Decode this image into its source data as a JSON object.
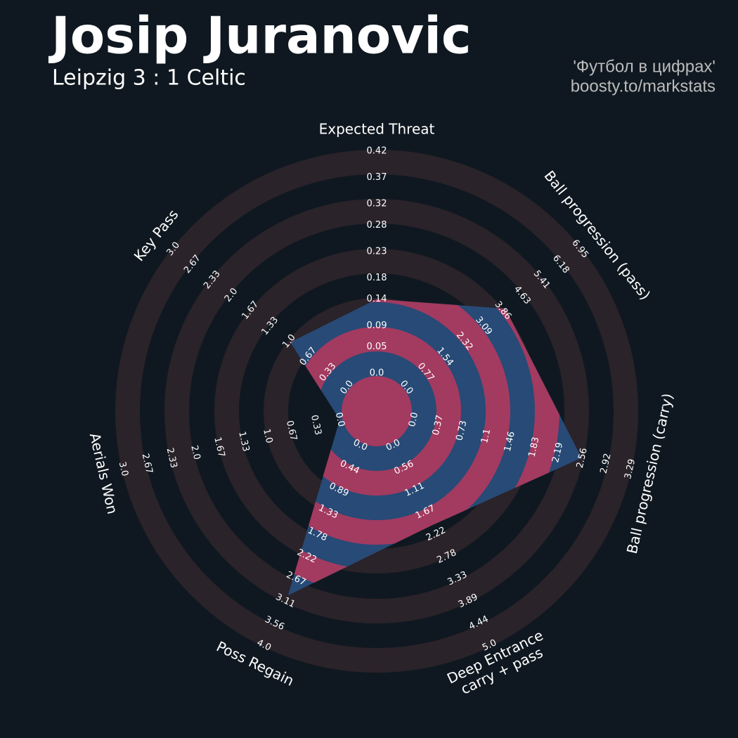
{
  "chart_data": {
    "type": "radar",
    "title": "Josip Juranovic",
    "subtitle": "Leipzig 3 : 1 Celtic",
    "credits": [
      "'Футбол в цифрах'",
      "boosty.to/markstats"
    ],
    "categories": [
      "Expected Threat",
      "Ball progression (pass)",
      "Ball progression (carry)",
      [
        "Deep Entrance",
        "carry + pass"
      ],
      "Poss Regain",
      "Aerials Won",
      "Key Pass"
    ],
    "values": [
      0.14,
      3.96,
      2.55,
      2.0,
      3.0,
      0,
      0.98
    ],
    "color": "#274a76",
    "ring_color": "#a33a60",
    "lims": [
      [
        0,
        0.42
      ],
      [
        0,
        6.95
      ],
      [
        0,
        3.29
      ],
      [
        0,
        5
      ],
      [
        0,
        4
      ],
      [
        0,
        3
      ],
      [
        0,
        3
      ]
    ],
    "ticks": [
      [
        {
          "value": 0,
          "label": "0.0"
        },
        0.05,
        0.09,
        0.14,
        0.18,
        0.23,
        0.28,
        0.32,
        0.37,
        0.42
      ],
      [
        {
          "value": 0,
          "label": "0.0"
        },
        0.77,
        1.54,
        2.32,
        3.09,
        3.86,
        4.63,
        5.41,
        6.18,
        6.95
      ],
      [
        {
          "value": 0,
          "label": "0.0"
        },
        0.37,
        0.73,
        1.1,
        1.46,
        1.83,
        2.19,
        2.56,
        2.92,
        3.29
      ],
      [
        {
          "value": 0,
          "label": "0.0"
        },
        0.56,
        1.11,
        1.67,
        2.22,
        2.78,
        3.33,
        3.89,
        4.44,
        {
          "value": 5,
          "label": "5.0"
        }
      ],
      [
        {
          "value": 0,
          "label": "0.0"
        },
        0.44,
        0.89,
        1.33,
        1.78,
        2.22,
        2.67,
        3.11,
        3.56,
        {
          "value": 4,
          "label": "4.0"
        }
      ],
      [
        {
          "value": 0,
          "label": "0.0"
        },
        0.33,
        0.67,
        {
          "value": 1,
          "label": "1.0"
        },
        1.33,
        1.67,
        {
          "value": 2,
          "label": "2.0"
        },
        2.33,
        2.67,
        {
          "value": 3,
          "label": "3.0"
        }
      ],
      [
        {
          "value": 0,
          "label": "0.0"
        },
        0.33,
        0.67,
        {
          "value": 1,
          "label": "1.0"
        },
        1.33,
        1.67,
        {
          "value": 2,
          "label": "2.0"
        },
        2.33,
        2.67,
        {
          "value": 3,
          "label": "3.0"
        }
      ]
    ]
  }
}
